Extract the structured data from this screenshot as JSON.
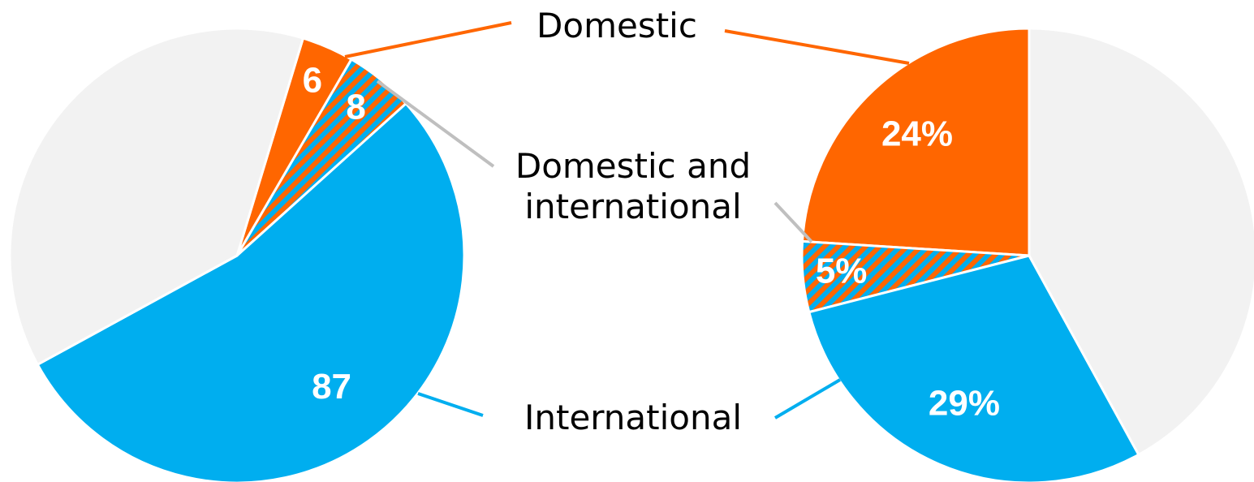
{
  "chart_data": {
    "type": "pie",
    "categories": [
      "Domestic",
      "Domestic and international",
      "International",
      null
    ],
    "colors": [
      "#ff6600",
      "#ff6600",
      "#00aeef",
      "#f2f2f2"
    ],
    "hatched": [
      false,
      true,
      false,
      false
    ],
    "hatch_color": "#00aeef",
    "series": [
      {
        "values": [
          6,
          8,
          87,
          61
        ],
        "direction": "clockwise"
      },
      {
        "values": [
          24,
          5,
          29,
          42
        ],
        "value_labels": [
          "24%",
          "5%",
          "29%",
          null
        ],
        "direction": "counterclockwise"
      }
    ]
  }
}
